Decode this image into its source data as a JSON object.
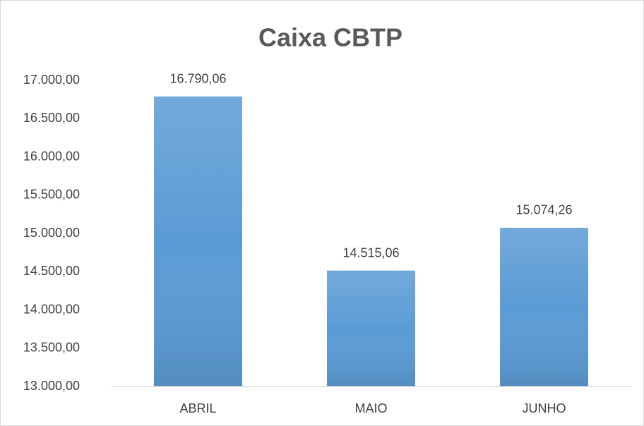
{
  "chart_data": {
    "type": "bar",
    "title": "Caixa CBTP",
    "categories": [
      "ABRIL",
      "MAIO",
      "JUNHO"
    ],
    "values": [
      16790.06,
      14515.06,
      15074.26
    ],
    "value_labels": [
      "16.790,06",
      "14.515,06",
      "15.074,26"
    ],
    "color": "#5b9bd5",
    "ylim": [
      13000,
      17000
    ],
    "yticks": [
      {
        "value": 13000,
        "label": "13.000,00"
      },
      {
        "value": 13500,
        "label": "13.500,00"
      },
      {
        "value": 14000,
        "label": "14.000,00"
      },
      {
        "value": 14500,
        "label": "14.500,00"
      },
      {
        "value": 15000,
        "label": "15.000,00"
      },
      {
        "value": 15500,
        "label": "15.500,00"
      },
      {
        "value": 16000,
        "label": "16.000,00"
      },
      {
        "value": 16500,
        "label": "16.500,00"
      },
      {
        "value": 17000,
        "label": "17.000,00"
      }
    ],
    "grid": false
  }
}
